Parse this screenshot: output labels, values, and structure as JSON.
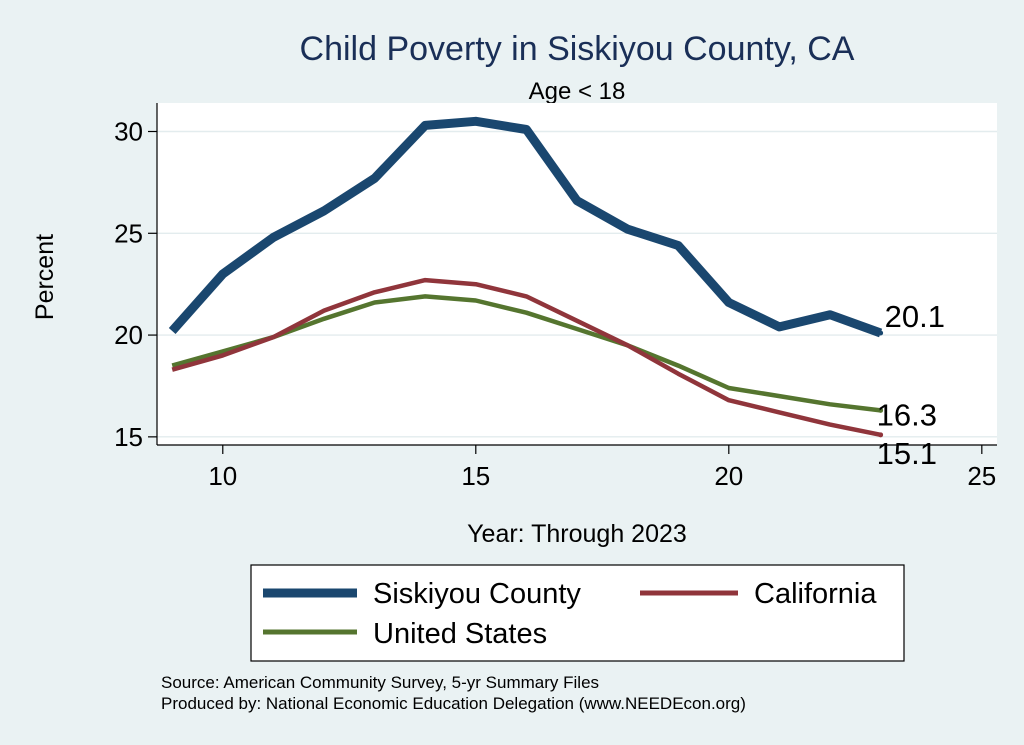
{
  "chart_data": {
    "type": "line",
    "title": "Child Poverty in Siskiyou County, CA",
    "subtitle": "Age < 18",
    "xlabel": "Year: Through 2023",
    "ylabel": "Percent",
    "xlim": [
      8.7,
      25.3
    ],
    "ylim": [
      14.6,
      31.4
    ],
    "xticks": [
      10,
      15,
      20,
      25
    ],
    "yticks": [
      15,
      20,
      25,
      30
    ],
    "grid": "horizontal",
    "x": [
      9,
      10,
      11,
      12,
      13,
      14,
      15,
      16,
      17,
      18,
      19,
      20,
      21,
      22,
      23
    ],
    "series": [
      {
        "name": "Siskiyou County",
        "color": "#1a476f",
        "values": [
          20.2,
          23.0,
          24.8,
          26.1,
          27.7,
          30.3,
          30.5,
          30.1,
          26.6,
          25.2,
          24.4,
          21.6,
          20.4,
          21.0,
          20.1
        ],
        "end_label": "20.1"
      },
      {
        "name": "California",
        "color": "#90353b",
        "values": [
          18.3,
          19.0,
          19.9,
          21.2,
          22.1,
          22.7,
          22.5,
          21.9,
          20.7,
          19.5,
          18.1,
          16.8,
          16.2,
          15.6,
          15.1
        ],
        "end_label": "15.1"
      },
      {
        "name": "United States",
        "color": "#55752f",
        "values": [
          18.5,
          19.2,
          19.9,
          20.8,
          21.6,
          21.9,
          21.7,
          21.1,
          20.3,
          19.5,
          18.5,
          17.4,
          17.0,
          16.6,
          16.3
        ],
        "end_label": "16.3"
      }
    ],
    "legend_position": "bottom"
  },
  "source": {
    "line1": "Source: American Community Survey, 5-yr Summary Files",
    "line2": "Produced by: National Economic Education Delegation (www.NEEDEcon.org)"
  },
  "colors": {
    "background": "#eaf2f3",
    "plot_background": "#ffffff",
    "grid": "#e3ecee",
    "title": "#1a2f57"
  }
}
